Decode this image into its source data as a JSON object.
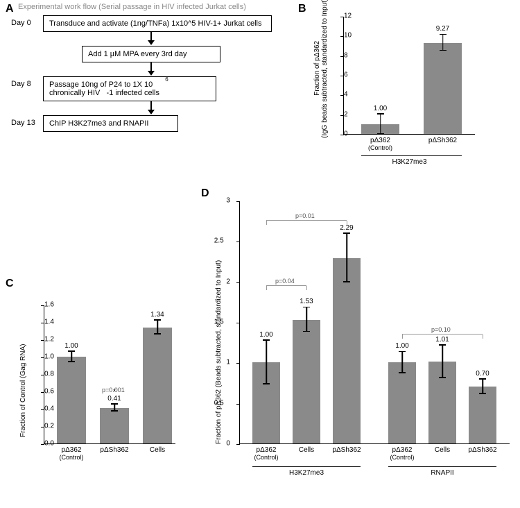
{
  "panelA": {
    "letter": "A",
    "title": "Experimental work flow (Serial passage in HIV infected Jurkat cells)",
    "steps": [
      {
        "day": "Day 0",
        "text": "Transduce and activate (1ng/TNFa) 1x10^5 HIV-1+ Jurkat cells"
      },
      {
        "day": "",
        "text": "Add 1 µM MPA every 3rd day"
      },
      {
        "day": "Day 8",
        "text": "Passage 10ng of P24 to 1X 10    chronically HIV   -1 infected cells",
        "sup": "6"
      },
      {
        "day": "Day 13",
        "text": "ChIP H3K27me3 and RNAPII"
      }
    ]
  },
  "panelB": {
    "letter": "B",
    "ylabel": "Fraction of pΔ362\n(IgG beads subtracted, standardized to Input)",
    "ymax": 12,
    "ystep": 2,
    "bars": [
      {
        "label": "pΔ362",
        "sub": "(Control)",
        "value": 1.0,
        "err": 1.0,
        "display": "1.00"
      },
      {
        "label": "pΔSh362",
        "sub": "",
        "value": 9.27,
        "err": 0.8,
        "display": "9.27"
      }
    ],
    "group": "H3K27me3",
    "colors": {
      "bar": "#8a8a8a",
      "axis": "#000"
    }
  },
  "panelC": {
    "letter": "C",
    "ylabel": "Fraction of Control (Gag RNA)",
    "ymax": 1.6,
    "ystep": 0.2,
    "bars": [
      {
        "label": "pΔ362",
        "sub": "(Control)",
        "value": 1.0,
        "err": 0.06,
        "display": "1.00",
        "p": ""
      },
      {
        "label": "pΔSh362",
        "sub": "",
        "value": 0.41,
        "err": 0.04,
        "display": "0.41",
        "p": "p=0.001"
      },
      {
        "label": "Cells",
        "sub": "",
        "value": 1.34,
        "err": 0.08,
        "display": "1.34",
        "p": ""
      }
    ],
    "colors": {
      "bar": "#8a8a8a"
    }
  },
  "panelD": {
    "letter": "D",
    "ylabel": "Fraction of pΔ362 (Beads subtracted, standardized to Input)",
    "ymax": 3,
    "ystep": 0.5,
    "groups": [
      {
        "name": "H3K27me3",
        "bars": [
          {
            "label": "pΔ362",
            "sub": "(Control)",
            "value": 1.0,
            "err": 0.27,
            "display": "1.00"
          },
          {
            "label": "Cells",
            "sub": "",
            "value": 1.53,
            "err": 0.15,
            "display": "1.53"
          },
          {
            "label": "pΔSh362",
            "sub": "",
            "value": 2.29,
            "err": 0.3,
            "display": "2.29"
          }
        ]
      },
      {
        "name": "RNAPII",
        "bars": [
          {
            "label": "pΔ362",
            "sub": "(Control)",
            "value": 1.0,
            "err": 0.13,
            "display": "1.00"
          },
          {
            "label": "Cells",
            "sub": "",
            "value": 1.01,
            "err": 0.2,
            "display": "1.01"
          },
          {
            "label": "pΔSh362",
            "sub": "",
            "value": 0.7,
            "err": 0.09,
            "display": "0.70"
          }
        ]
      }
    ],
    "pvals": [
      {
        "text": "p=0.01",
        "from": 0,
        "to": 2,
        "y": 2.75
      },
      {
        "text": "p=0.04",
        "from": 0,
        "to": 1,
        "y": 1.95
      },
      {
        "text": "p=0.10",
        "from": 3,
        "to": 5,
        "y": 1.35
      }
    ],
    "colors": {
      "bar": "#8a8a8a"
    }
  }
}
